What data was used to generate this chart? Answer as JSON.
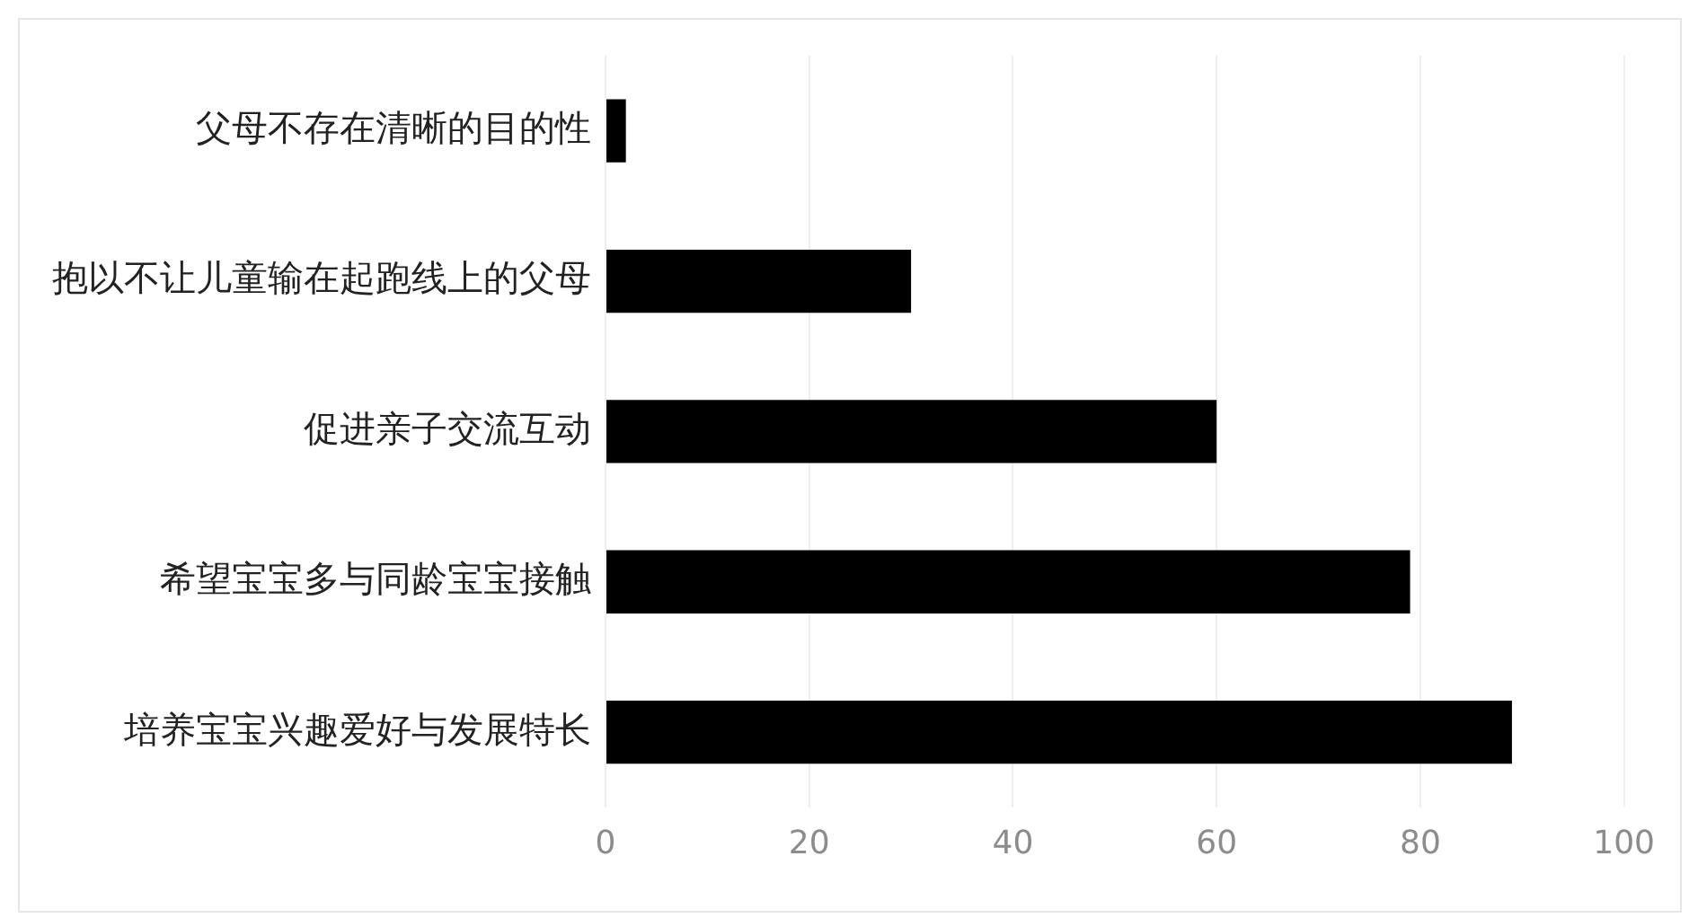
{
  "chart_data": {
    "type": "bar",
    "orientation": "horizontal",
    "categories": [
      "父母不存在清晰的目的性",
      "抱以不让儿童输在起跑线上的父母",
      "促进亲子交流互动",
      "希望宝宝多与同龄宝宝接触",
      "培养宝宝兴趣爱好与发展特长"
    ],
    "values": [
      2,
      30,
      60,
      79,
      89
    ],
    "color": "#000000",
    "xlim": [
      0,
      100
    ],
    "xticks": [
      0,
      20,
      40,
      60,
      80,
      100
    ],
    "grid": "x",
    "legend": false
  }
}
